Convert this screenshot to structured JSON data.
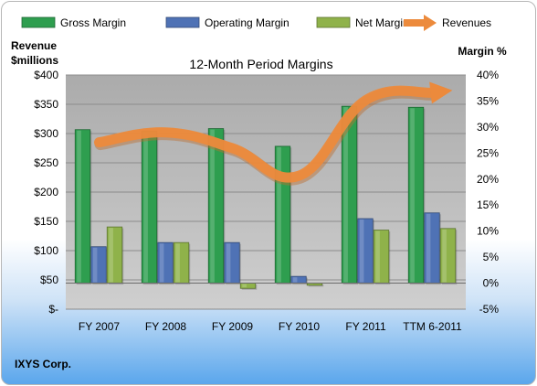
{
  "chart_data": {
    "type": "bar",
    "title": "12-Month Period Margins",
    "company": "IXYS Corp.",
    "categories": [
      "FY 2007",
      "FY 2008",
      "FY 2009",
      "FY 2010",
      "FY 2011",
      "TTM 6-2011"
    ],
    "left_axis": {
      "title_line1": "Revenue",
      "title_line2": "$millions",
      "ylim": [
        0,
        400
      ],
      "ticks": [
        0,
        50,
        100,
        150,
        200,
        250,
        300,
        350,
        400
      ],
      "tick_labels": [
        "$-",
        "$50",
        "$100",
        "$150",
        "$200",
        "$250",
        "$300",
        "$350",
        "$400"
      ]
    },
    "right_axis": {
      "title": "Margin %",
      "ylim": [
        -5,
        40
      ],
      "ticks": [
        -5,
        0,
        5,
        10,
        15,
        20,
        25,
        30,
        35,
        40
      ],
      "tick_labels": [
        "-5%",
        "0%",
        "5%",
        "10%",
        "15%",
        "20%",
        "25%",
        "30%",
        "35%",
        "40%"
      ]
    },
    "series": [
      {
        "name": "Gross Margin",
        "kind": "bar",
        "axis": "right",
        "color": "#2e9e4f",
        "values": [
          29.5,
          29.2,
          29.7,
          26.3,
          34.0,
          33.8
        ]
      },
      {
        "name": "Operating Margin",
        "kind": "bar",
        "axis": "right",
        "color": "#4f72b5",
        "values": [
          7.0,
          7.8,
          7.8,
          1.3,
          12.4,
          13.5
        ]
      },
      {
        "name": "Net Margin",
        "kind": "bar",
        "axis": "right",
        "color": "#8fb24a",
        "values": [
          10.8,
          7.8,
          -1.0,
          -0.4,
          10.2,
          10.5
        ]
      },
      {
        "name": "Revenues",
        "kind": "line",
        "axis": "left",
        "color": "#ec8a3c",
        "values": [
          285,
          302,
          275,
          228,
          357,
          370
        ]
      }
    ],
    "grid": true,
    "legend_position": "top"
  }
}
